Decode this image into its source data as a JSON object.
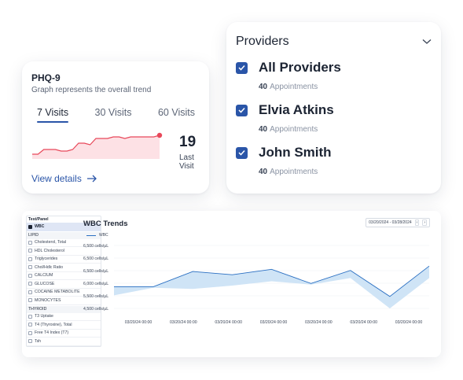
{
  "phq": {
    "title": "PHQ-9",
    "subtitle": "Graph represents the overall trend",
    "tabs": [
      "7 Visits",
      "30 Visits",
      "60 Visits"
    ],
    "active_tab": "7 Visits",
    "trend": [
      2,
      2,
      5,
      5,
      5,
      4,
      4,
      5,
      9,
      9,
      8,
      12,
      12,
      12,
      13,
      13,
      12,
      13,
      13,
      13,
      13,
      13,
      14
    ],
    "value": "19",
    "value_label": "Last Visit",
    "details_link": "View details",
    "colors": {
      "line": "#e8485a",
      "fill": "#fde1e5",
      "accent": "#2a55a8"
    }
  },
  "providers": {
    "title": "Providers",
    "items": [
      {
        "name": "All Providers",
        "count": "40",
        "label": "Appointments",
        "checked": true
      },
      {
        "name": "Elvia Atkins",
        "count": "40",
        "label": "Appointments",
        "checked": true
      },
      {
        "name": "John Smith",
        "count": "40",
        "label": "Appointments",
        "checked": true
      }
    ]
  },
  "wbc": {
    "sidebar_header": "Test/Panel",
    "selected": "WBC",
    "sections": [
      {
        "name": "LIPID",
        "items": [
          "Cholesterol, Total",
          "HDL Cholesterol",
          "Triglycerides",
          "Chol/Hdlc Ratio",
          "CALCIUM",
          "GLUCOSE",
          "COCAINE METABOLITE",
          "MONOCYTES"
        ]
      },
      {
        "name": "THYROID",
        "items": [
          "T3 Uptake",
          "T4 (Thyroxine), Total",
          "Free T4 Index (T7)",
          "Tsh"
        ]
      }
    ],
    "date_range": "03/20/2024 - 03/28/2024",
    "prev_label": "‹",
    "next_label": "›"
  },
  "chart_data": {
    "type": "area",
    "title": "WBC Trends",
    "series": [
      {
        "name": "WBC",
        "values": [
          5400,
          5400,
          6100,
          5950,
          6200,
          5550,
          6150,
          4950,
          6350
        ]
      },
      {
        "name": "",
        "values": [
          5000,
          5350,
          5300,
          5450,
          5650,
          5500,
          5800,
          4400,
          5800
        ]
      }
    ],
    "x_ticks": [
      "03/20/24 00:00",
      "03/20/24 00:00",
      "03/20/24 00:00",
      "03/20/24 00:00",
      "03/20/24 00:00",
      "03/20/24 00:00",
      "03/20/24 00:00"
    ],
    "y_ticks": [
      "6,500 cells/µL",
      "6,500 cells/µL",
      "6,500 cells/µL",
      "6,000 cells/µL",
      "5,500 cells/µL",
      "4,500 cells/µL"
    ],
    "ylim": [
      4400,
      7300
    ],
    "colors": {
      "line": "#2a6fc2",
      "band": "#cfe4f6"
    },
    "grid": true,
    "legend": "top-left"
  }
}
